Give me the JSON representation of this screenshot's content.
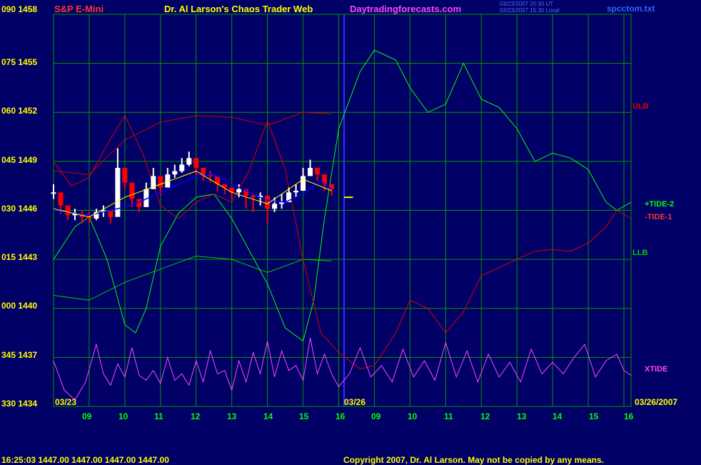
{
  "header": {
    "instrument": "S&P E-Mini",
    "title": "Dr. Al Larson's Chaos Trader Web",
    "site": "Daytradingforecasts.com",
    "date_line1": "03/23/2007 20:30 UT",
    "date_line2": "03/23/2007 15:30 Local",
    "file": "spcctom.txt"
  },
  "footer": {
    "quote": "16:25:03  1447.00 1447.00 1447.00 1447.00",
    "copyright": "Copyright 2007, Dr. Al Larson. May not be copied by any means."
  },
  "colors": {
    "background": "#000066",
    "grid": "#009900",
    "divider": "#3333ff"
  },
  "chart_data": {
    "type": "line",
    "y_axis": {
      "labels": [
        "090 1458",
        "075 1455",
        "060 1452",
        "045 1449",
        "030 1446",
        "015 1443",
        "000 1440",
        "345 1437",
        "330 1434"
      ],
      "price_range": [
        1434,
        1458
      ],
      "angle_range": [
        330,
        450
      ]
    },
    "x_axis": {
      "day1_date": "03/23",
      "day2_date": "03/26",
      "end_date": "03/26/2007",
      "day1_hours": [
        "09",
        "10",
        "11",
        "12",
        "13",
        "14",
        "15",
        "16"
      ],
      "day2_hours": [
        "09",
        "10",
        "11",
        "12",
        "13",
        "14",
        "15",
        "16"
      ],
      "range": [
        0,
        16.2
      ]
    },
    "price_bars": {
      "x": [
        0,
        0.2,
        0.4,
        0.6,
        0.8,
        1.0,
        1.2,
        1.4,
        1.6,
        1.8,
        2.0,
        2.2,
        2.4,
        2.6,
        2.8,
        3.0,
        3.2,
        3.4,
        3.6,
        3.8,
        4.0,
        4.2,
        4.4,
        4.6,
        4.8,
        5.0,
        5.2,
        5.4,
        5.6,
        5.8,
        6.0,
        6.2,
        6.4,
        6.6,
        6.8,
        7.0,
        7.2,
        7.4,
        7.6,
        7.8
      ],
      "close": [
        1447.1,
        1446.3,
        1445.7,
        1445.8,
        1445.6,
        1445.5,
        1445.9,
        1446.0,
        1445.6,
        1448.6,
        1447.7,
        1446.7,
        1446.2,
        1447.3,
        1448.1,
        1447.4,
        1448.2,
        1448.4,
        1448.8,
        1449.2,
        1448.6,
        1448.2,
        1448.1,
        1447.6,
        1447.4,
        1447.1,
        1447.3,
        1446.9,
        1446.8,
        1446.9,
        1446.1,
        1446.4,
        1446.5,
        1447.1,
        1447.2,
        1448.1,
        1448.6,
        1448.2,
        1447.6,
        1447.3
      ],
      "high": [
        1447.6,
        1446.6,
        1446.0,
        1446.1,
        1446.0,
        1445.9,
        1446.1,
        1446.3,
        1445.9,
        1449.8,
        1448.3,
        1447.2,
        1446.7,
        1447.7,
        1448.6,
        1447.8,
        1448.6,
        1448.8,
        1449.2,
        1449.6,
        1449.1,
        1448.6,
        1448.4,
        1448.0,
        1447.6,
        1447.4,
        1447.6,
        1447.2,
        1447.0,
        1447.1,
        1446.5,
        1446.8,
        1447.0,
        1447.4,
        1447.6,
        1448.6,
        1449.1,
        1448.6,
        1448.0,
        1447.6
      ],
      "low": [
        1446.7,
        1445.8,
        1445.4,
        1445.4,
        1445.2,
        1445.2,
        1445.4,
        1445.6,
        1445.2,
        1447.8,
        1447.3,
        1446.2,
        1445.9,
        1446.7,
        1447.7,
        1446.9,
        1447.8,
        1448.0,
        1448.3,
        1448.7,
        1448.1,
        1447.8,
        1447.7,
        1447.2,
        1447.0,
        1446.7,
        1446.8,
        1446.1,
        1445.9,
        1446.3,
        1445.2,
        1445.9,
        1446.1,
        1446.6,
        1446.8,
        1447.6,
        1448.2,
        1447.8,
        1447.2,
        1446.9
      ],
      "up_color": "#ffffff",
      "down_color": "#ff0000"
    },
    "series": [
      {
        "name": "ULB",
        "color": "#cc0000",
        "x": [
          0,
          1,
          2,
          3,
          4,
          5,
          6,
          7,
          7.8
        ],
        "y": [
          1448.4,
          1448.2,
          1450.3,
          1451.4,
          1451.8,
          1451.7,
          1451.2,
          1452.0,
          1451.9
        ]
      },
      {
        "name": "LLB",
        "color": "#00cc00",
        "x": [
          0,
          1,
          2,
          3,
          4,
          5,
          6,
          7,
          7.8
        ],
        "y": [
          1440.8,
          1440.5,
          1441.6,
          1442.4,
          1443.2,
          1443.0,
          1442.2,
          1443.0,
          1442.9
        ]
      },
      {
        "name": "+TIDE-2",
        "color": "#00ff00",
        "x": [
          0,
          0.6,
          1,
          1.5,
          2,
          2.3,
          2.6,
          3,
          3.5,
          4,
          4.5,
          5,
          5.5,
          6,
          6.5,
          7,
          7.3,
          7.6,
          8,
          8.6,
          9,
          9.6,
          10,
          10.5,
          11,
          11.4,
          11.5,
          12,
          12.5,
          13,
          13.5,
          14,
          14.5,
          15,
          15.5,
          15.8,
          16.2
        ],
        "y": [
          1443.0,
          1445.0,
          1445.6,
          1443.0,
          1439.0,
          1438.5,
          1440.0,
          1443.8,
          1445.8,
          1446.8,
          1447.0,
          1445.5,
          1443.5,
          1441.5,
          1438.8,
          1438.0,
          1440.5,
          1445.5,
          1451.0,
          1454.5,
          1455.8,
          1455.2,
          1453.5,
          1452.0,
          1452.5,
          1454.5,
          1455.0,
          1452.8,
          1452.3,
          1451.0,
          1449.0,
          1449.5,
          1449.2,
          1448.5,
          1446.5,
          1446.0,
          1446.5
        ]
      },
      {
        "name": "-TIDE-1",
        "color": "#dd0000",
        "x": [
          0,
          0.5,
          1,
          1.5,
          2,
          2.5,
          3,
          3.5,
          4,
          4.5,
          5,
          5.5,
          6,
          6.5,
          7,
          7.5,
          8,
          8.6,
          9,
          9.6,
          10,
          10.5,
          11,
          11.5,
          12,
          12.5,
          13,
          13.5,
          14,
          14.5,
          15,
          15.5,
          15.8,
          16.2
        ],
        "y": [
          1449.0,
          1447.5,
          1448.0,
          1450.0,
          1451.8,
          1449.5,
          1446.3,
          1445.5,
          1446.5,
          1447.0,
          1446.5,
          1448.5,
          1451.5,
          1448.5,
          1443.0,
          1438.5,
          1437.3,
          1436.3,
          1436.5,
          1438.5,
          1440.5,
          1440.0,
          1438.5,
          1439.8,
          1442.0,
          1442.5,
          1443.0,
          1443.5,
          1443.6,
          1443.5,
          1444.0,
          1445.0,
          1446.0,
          1445.5
        ]
      },
      {
        "name": "XTIDE",
        "color": "#ff44ff",
        "x": [
          0,
          0.3,
          0.6,
          0.9,
          1.2,
          1.4,
          1.6,
          1.8,
          2.0,
          2.2,
          2.4,
          2.6,
          2.8,
          3.0,
          3.2,
          3.4,
          3.6,
          3.8,
          4.0,
          4.2,
          4.4,
          4.6,
          4.8,
          5.0,
          5.2,
          5.4,
          5.6,
          5.8,
          6.0,
          6.2,
          6.4,
          6.6,
          6.8,
          7.0,
          7.2,
          7.4,
          7.6,
          7.8,
          8.0,
          8.3,
          8.6,
          8.9,
          9.2,
          9.5,
          9.8,
          10.1,
          10.4,
          10.7,
          11.0,
          11.3,
          11.6,
          11.9,
          12.2,
          12.5,
          12.8,
          13.1,
          13.4,
          13.7,
          14.0,
          14.3,
          14.6,
          14.9,
          15.2,
          15.5,
          15.8,
          16.0,
          16.2
        ],
        "y": [
          1436.8,
          1435.0,
          1434.4,
          1435.5,
          1437.8,
          1436.0,
          1435.3,
          1436.6,
          1435.8,
          1437.6,
          1435.9,
          1435.6,
          1436.2,
          1435.4,
          1437.0,
          1435.6,
          1436.0,
          1435.3,
          1436.8,
          1435.5,
          1437.4,
          1436.0,
          1436.2,
          1435.0,
          1436.8,
          1435.5,
          1437.3,
          1436.0,
          1438.0,
          1435.8,
          1437.4,
          1436.2,
          1436.5,
          1435.6,
          1438.2,
          1436.0,
          1437.2,
          1436.0,
          1435.2,
          1436.0,
          1437.6,
          1435.8,
          1436.5,
          1435.5,
          1437.5,
          1435.8,
          1436.8,
          1435.6,
          1437.9,
          1435.8,
          1437.4,
          1435.5,
          1437.2,
          1435.8,
          1436.7,
          1435.5,
          1437.5,
          1436.0,
          1436.7,
          1436.0,
          1437.0,
          1437.8,
          1435.8,
          1436.8,
          1437.2,
          1436.2,
          1435.9
        ]
      }
    ],
    "moving_average": {
      "color": "#0000ff",
      "x": [
        0,
        1,
        2,
        2.5,
        3,
        3.5,
        4,
        4.5,
        5,
        5.5,
        6,
        6.5,
        7,
        7.5,
        7.8
      ],
      "y": [
        1446.0,
        1445.7,
        1446.2,
        1446.6,
        1447.1,
        1447.6,
        1448.1,
        1448.2,
        1447.6,
        1447.1,
        1446.6,
        1446.5,
        1447.0,
        1447.8,
        1447.3
      ]
    },
    "yellow_line": {
      "color": "#ffff00",
      "x": [
        0,
        1,
        2,
        3,
        4,
        5,
        6,
        7,
        7.8
      ],
      "y": [
        1446.1,
        1445.6,
        1446.8,
        1447.6,
        1448.4,
        1447.1,
        1446.4,
        1447.9,
        1447.2
      ]
    },
    "marker": {
      "color": "#ffff00",
      "x": [
        8.15,
        8.4
      ],
      "y": 1446.8
    }
  }
}
